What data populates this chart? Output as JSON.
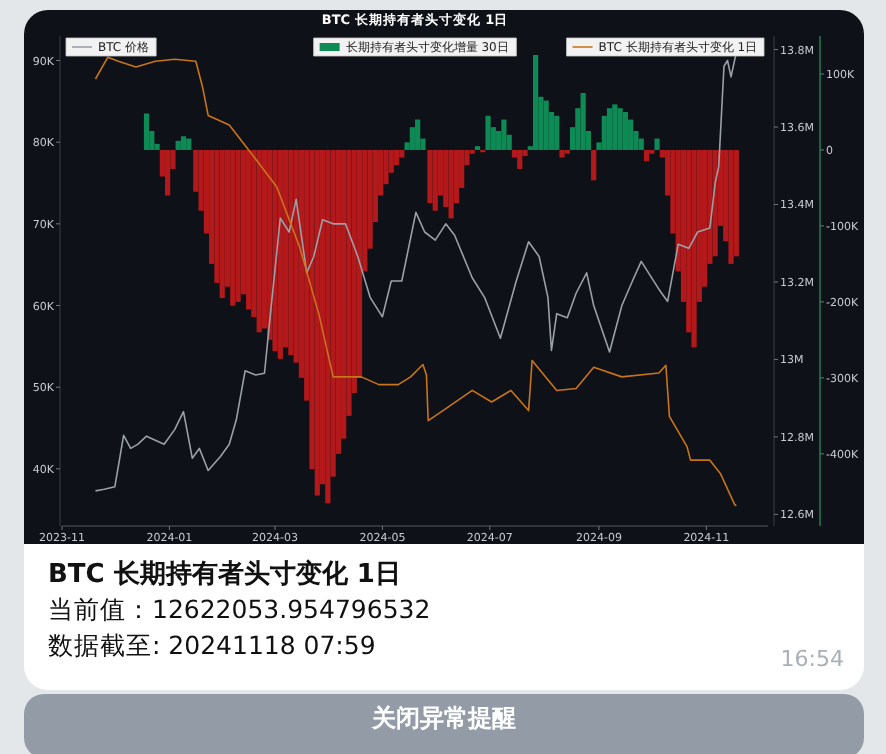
{
  "chart_data": {
    "type": "line",
    "title": "BTC 长期持有者头寸变化 1日",
    "xlim": [
      "2023-11-01",
      "2024-12-06"
    ],
    "xticks": [
      "2023-11",
      "2024-01",
      "2024-03",
      "2024-05",
      "2024-07",
      "2024-09",
      "2024-11"
    ],
    "ylim": [
      33000,
      93000
    ],
    "yticks": [
      {
        "value": 40000,
        "label": "40K"
      },
      {
        "value": 50000,
        "label": "50K"
      },
      {
        "value": 60000,
        "label": "60K"
      },
      {
        "value": 70000,
        "label": "70K"
      },
      {
        "value": 80000,
        "label": "80K"
      },
      {
        "value": 90000,
        "label": "90K"
      }
    ],
    "y2lim": [
      12570000,
      13835000
    ],
    "y2ticks": [
      {
        "value": 12600000,
        "label": "12.6M"
      },
      {
        "value": 12800000,
        "label": "12.8M"
      },
      {
        "value": 13000000,
        "label": "13M"
      },
      {
        "value": 13200000,
        "label": "13.2M"
      },
      {
        "value": 13400000,
        "label": "13.4M"
      },
      {
        "value": 13600000,
        "label": "13.6M"
      },
      {
        "value": 13800000,
        "label": "13.8M"
      }
    ],
    "y3lim": [
      -495000,
      150000
    ],
    "y3ticks": [
      {
        "value": -400000,
        "label": "-400K"
      },
      {
        "value": -300000,
        "label": "-300K"
      },
      {
        "value": -200000,
        "label": "-200K"
      },
      {
        "value": -100000,
        "label": "-100K"
      },
      {
        "value": 0,
        "label": "0"
      },
      {
        "value": 100000,
        "label": "100K"
      }
    ],
    "legend": "top",
    "series": [
      {
        "name": "BTC 价格",
        "axis": "y",
        "color": "#9aa0a8",
        "x": [
          "2023-11-20",
          "2023-11-25",
          "2023-12-01",
          "2023-12-06",
          "2023-12-10",
          "2023-12-14",
          "2023-12-19",
          "2023-12-24",
          "2023-12-29",
          "2024-01-04",
          "2024-01-09",
          "2024-01-14",
          "2024-01-18",
          "2024-01-23",
          "2024-01-30",
          "2024-02-04",
          "2024-02-08",
          "2024-02-13",
          "2024-02-19",
          "2024-02-24",
          "2024-02-28",
          "2024-03-04",
          "2024-03-09",
          "2024-03-13",
          "2024-03-19",
          "2024-03-23",
          "2024-03-28",
          "2024-04-03",
          "2024-04-10",
          "2024-04-17",
          "2024-04-24",
          "2024-05-01",
          "2024-05-06",
          "2024-05-12",
          "2024-05-20",
          "2024-05-25",
          "2024-05-31",
          "2024-06-06",
          "2024-06-11",
          "2024-06-21",
          "2024-06-28",
          "2024-07-07",
          "2024-07-16",
          "2024-07-23",
          "2024-07-29",
          "2024-08-03",
          "2024-08-05",
          "2024-08-08",
          "2024-08-14",
          "2024-08-19",
          "2024-08-25",
          "2024-08-29",
          "2024-09-07",
          "2024-09-14",
          "2024-09-20",
          "2024-09-25",
          "2024-10-05",
          "2024-10-10",
          "2024-10-16",
          "2024-10-22",
          "2024-10-27",
          "2024-11-03",
          "2024-11-06",
          "2024-11-08",
          "2024-11-11",
          "2024-11-13",
          "2024-11-15",
          "2024-11-18"
        ],
        "values": [
          37300,
          37500,
          37800,
          44100,
          42500,
          43000,
          44000,
          43500,
          43000,
          44800,
          47000,
          41300,
          42500,
          39800,
          41500,
          43000,
          46000,
          52000,
          51500,
          51700,
          60300,
          70700,
          69000,
          73000,
          64000,
          66000,
          70500,
          70000,
          70000,
          66000,
          61000,
          58600,
          63000,
          63000,
          71400,
          69000,
          68000,
          70000,
          68600,
          63400,
          61000,
          56000,
          63000,
          67800,
          66000,
          61000,
          54500,
          59000,
          58500,
          61500,
          64000,
          60000,
          54300,
          60000,
          63000,
          65400,
          62000,
          60500,
          67500,
          67000,
          69000,
          69500,
          75000,
          77000,
          89300,
          90000,
          88000,
          91000
        ]
      },
      {
        "name": "长期持有者头寸变化增量 30日",
        "type": "bar",
        "axis": "y3",
        "color": "#0e8a55",
        "x": [
          "2023-12-19",
          "2023-12-22",
          "2023-12-25",
          "2023-12-28",
          "2023-12-31",
          "2024-01-03",
          "2024-01-06",
          "2024-01-09",
          "2024-01-12",
          "2024-01-16",
          "2024-01-19",
          "2024-01-22",
          "2024-01-25",
          "2024-01-28",
          "2024-01-31",
          "2024-02-03",
          "2024-02-06",
          "2024-02-09",
          "2024-02-12",
          "2024-02-15",
          "2024-02-18",
          "2024-02-21",
          "2024-02-24",
          "2024-02-27",
          "2024-03-01",
          "2024-03-04",
          "2024-03-07",
          "2024-03-10",
          "2024-03-13",
          "2024-03-16",
          "2024-03-19",
          "2024-03-22",
          "2024-03-25",
          "2024-03-28",
          "2024-03-31",
          "2024-04-03",
          "2024-04-06",
          "2024-04-09",
          "2024-04-12",
          "2024-04-15",
          "2024-04-18",
          "2024-04-21",
          "2024-04-24",
          "2024-04-27",
          "2024-04-30",
          "2024-05-03",
          "2024-05-06",
          "2024-05-09",
          "2024-05-12",
          "2024-05-15",
          "2024-05-18",
          "2024-05-21",
          "2024-05-24",
          "2024-05-28",
          "2024-05-31",
          "2024-06-03",
          "2024-06-06",
          "2024-06-09",
          "2024-06-12",
          "2024-06-15",
          "2024-06-18",
          "2024-06-21",
          "2024-06-24",
          "2024-06-27",
          "2024-06-30",
          "2024-07-03",
          "2024-07-06",
          "2024-07-09",
          "2024-07-12",
          "2024-07-15",
          "2024-07-18",
          "2024-07-21",
          "2024-07-24",
          "2024-07-27",
          "2024-07-30",
          "2024-08-02",
          "2024-08-05",
          "2024-08-08",
          "2024-08-11",
          "2024-08-14",
          "2024-08-17",
          "2024-08-20",
          "2024-08-23",
          "2024-08-26",
          "2024-08-29",
          "2024-09-01",
          "2024-09-04",
          "2024-09-07",
          "2024-09-10",
          "2024-09-13",
          "2024-09-16",
          "2024-09-19",
          "2024-09-22",
          "2024-09-25",
          "2024-09-28",
          "2024-10-01",
          "2024-10-04",
          "2024-10-07",
          "2024-10-10",
          "2024-10-13",
          "2024-10-16",
          "2024-10-19",
          "2024-10-22",
          "2024-10-25",
          "2024-10-28",
          "2024-10-31",
          "2024-11-03",
          "2024-11-06",
          "2024-11-09",
          "2024-11-12",
          "2024-11-15",
          "2024-11-18"
        ],
        "values": [
          48000,
          25000,
          8000,
          -35000,
          -60000,
          -25000,
          12000,
          18000,
          15000,
          -55000,
          -80000,
          -110000,
          -150000,
          -175000,
          -195000,
          -180000,
          -205000,
          -200000,
          -190000,
          -210000,
          -220000,
          -240000,
          -235000,
          -250000,
          -265000,
          -275000,
          -260000,
          -270000,
          -280000,
          -300000,
          -330000,
          -420000,
          -455000,
          -440000,
          -465000,
          -430000,
          -400000,
          -380000,
          -350000,
          -320000,
          -300000,
          -160000,
          -130000,
          -95000,
          -60000,
          -45000,
          -30000,
          -20000,
          -10000,
          10000,
          30000,
          40000,
          15000,
          -70000,
          -80000,
          -60000,
          -75000,
          -90000,
          -70000,
          -50000,
          -20000,
          -5000,
          5000,
          -3000,
          45000,
          30000,
          25000,
          40000,
          20000,
          -10000,
          -25000,
          -8000,
          5000,
          125000,
          70000,
          65000,
          50000,
          45000,
          -10000,
          -5000,
          30000,
          55000,
          75000,
          25000,
          -40000,
          10000,
          45000,
          55000,
          60000,
          55000,
          50000,
          40000,
          25000,
          15000,
          -15000,
          -5000,
          15000,
          -10000,
          -60000,
          -110000,
          -160000,
          -200000,
          -240000,
          -260000,
          -200000,
          -180000,
          -150000,
          -140000,
          -100000,
          -120000,
          -150000,
          -140000
        ],
        "colors": [
          "#0e8a55",
          "#0e8a55",
          "#0e8a55",
          "#b3191a",
          "#b3191a",
          "#b3191a",
          "#0e8a55",
          "#0e8a55",
          "#0e8a55",
          "#b3191a",
          "#b3191a",
          "#b3191a",
          "#b3191a",
          "#b3191a",
          "#b3191a",
          "#b3191a",
          "#b3191a",
          "#b3191a",
          "#b3191a",
          "#b3191a",
          "#b3191a",
          "#b3191a",
          "#b3191a",
          "#b3191a",
          "#b3191a",
          "#b3191a",
          "#b3191a",
          "#b3191a",
          "#b3191a",
          "#b3191a",
          "#b3191a",
          "#b3191a",
          "#b3191a",
          "#b3191a",
          "#b3191a",
          "#b3191a",
          "#b3191a",
          "#b3191a",
          "#b3191a",
          "#b3191a",
          "#b3191a",
          "#b3191a",
          "#b3191a",
          "#b3191a",
          "#b3191a",
          "#b3191a",
          "#b3191a",
          "#b3191a",
          "#b3191a",
          "#0e8a55",
          "#0e8a55",
          "#0e8a55",
          "#0e8a55",
          "#b3191a",
          "#b3191a",
          "#b3191a",
          "#b3191a",
          "#b3191a",
          "#b3191a",
          "#b3191a",
          "#b3191a",
          "#b3191a",
          "#0e8a55",
          "#b3191a",
          "#0e8a55",
          "#0e8a55",
          "#0e8a55",
          "#0e8a55",
          "#0e8a55",
          "#b3191a",
          "#b3191a",
          "#b3191a",
          "#0e8a55",
          "#0e8a55",
          "#0e8a55",
          "#0e8a55",
          "#0e8a55",
          "#0e8a55",
          "#b3191a",
          "#b3191a",
          "#0e8a55",
          "#0e8a55",
          "#0e8a55",
          "#0e8a55",
          "#b3191a",
          "#0e8a55",
          "#0e8a55",
          "#0e8a55",
          "#0e8a55",
          "#0e8a55",
          "#0e8a55",
          "#0e8a55",
          "#0e8a55",
          "#0e8a55",
          "#b3191a",
          "#b3191a",
          "#0e8a55",
          "#b3191a",
          "#b3191a",
          "#b3191a",
          "#b3191a",
          "#b3191a",
          "#b3191a",
          "#b3191a",
          "#b3191a",
          "#b3191a",
          "#b3191a",
          "#b3191a",
          "#b3191a",
          "#b3191a",
          "#b3191a",
          "#b3191a"
        ]
      },
      {
        "name": "BTC 长期持有者头寸变化 1日",
        "axis": "y2",
        "color": "#c8741a",
        "x": [
          "2023-11-20",
          "2023-11-27",
          "2023-12-03",
          "2023-12-13",
          "2023-12-24",
          "2024-01-04",
          "2024-01-16",
          "2024-01-20",
          "2024-01-23",
          "2024-02-04",
          "2024-02-18",
          "2024-03-02",
          "2024-03-15",
          "2024-03-26",
          "2024-04-03",
          "2024-04-19",
          "2024-04-29",
          "2024-05-10",
          "2024-05-17",
          "2024-05-24",
          "2024-05-26",
          "2024-05-27",
          "2024-06-05",
          "2024-06-21",
          "2024-07-02",
          "2024-07-13",
          "2024-07-23",
          "2024-07-24",
          "2024-07-25",
          "2024-08-08",
          "2024-08-19",
          "2024-08-29",
          "2024-09-14",
          "2024-10-05",
          "2024-10-09",
          "2024-10-11",
          "2024-10-21",
          "2024-10-23",
          "2024-11-03",
          "2024-11-09",
          "2024-11-17",
          "2024-11-18"
        ],
        "values": [
          13724000,
          13780000,
          13770000,
          13755000,
          13770000,
          13775000,
          13770000,
          13700000,
          13630000,
          13605000,
          13523000,
          13445000,
          13290000,
          13115000,
          12955000,
          12955000,
          12935000,
          12935000,
          12955000,
          12987000,
          12960000,
          12842000,
          12870000,
          12920000,
          12890000,
          12920000,
          12868000,
          12930000,
          12997000,
          12920000,
          12925000,
          12980000,
          12955000,
          12965000,
          12985000,
          12853000,
          12775000,
          12740000,
          12740000,
          12705000,
          12626000,
          12622000
        ]
      }
    ],
    "annotations": [
      "BTC 长期持有者头寸变化 1日",
      "当前值：12622053.954796532",
      "数据截至: 20241118 07:59",
      "16:54",
      "关闭异常提醒"
    ]
  }
}
